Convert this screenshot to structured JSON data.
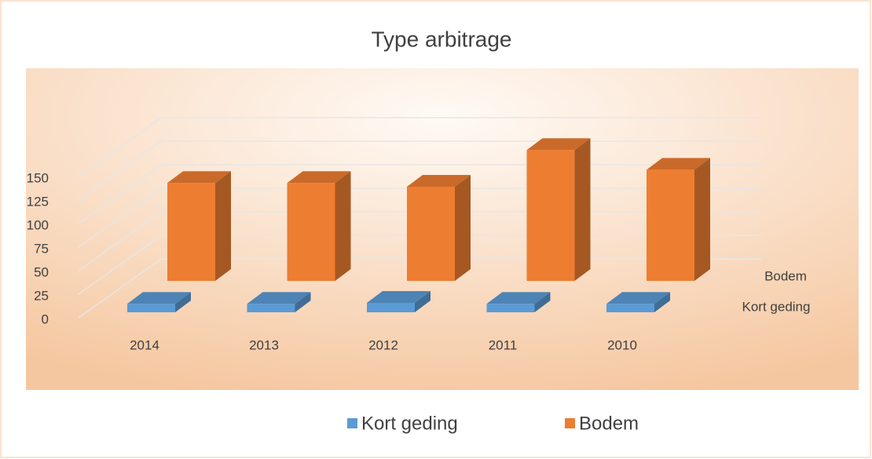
{
  "chart_data": {
    "type": "bar3d",
    "title": "Type arbitrage",
    "categories": [
      "2014",
      "2013",
      "2012",
      "2011",
      "2010"
    ],
    "series": [
      {
        "name": "Kort geding",
        "color": "#5b9bd5",
        "values": [
          9,
          9,
          10,
          9,
          9
        ]
      },
      {
        "name": "Bodem",
        "color": "#ed7d31",
        "values": [
          104,
          104,
          100,
          139,
          118
        ]
      }
    ],
    "ylim": [
      0,
      150
    ],
    "yticks": [
      0,
      25,
      50,
      75,
      100,
      125,
      150
    ],
    "grid": true,
    "legend": "bottom"
  }
}
